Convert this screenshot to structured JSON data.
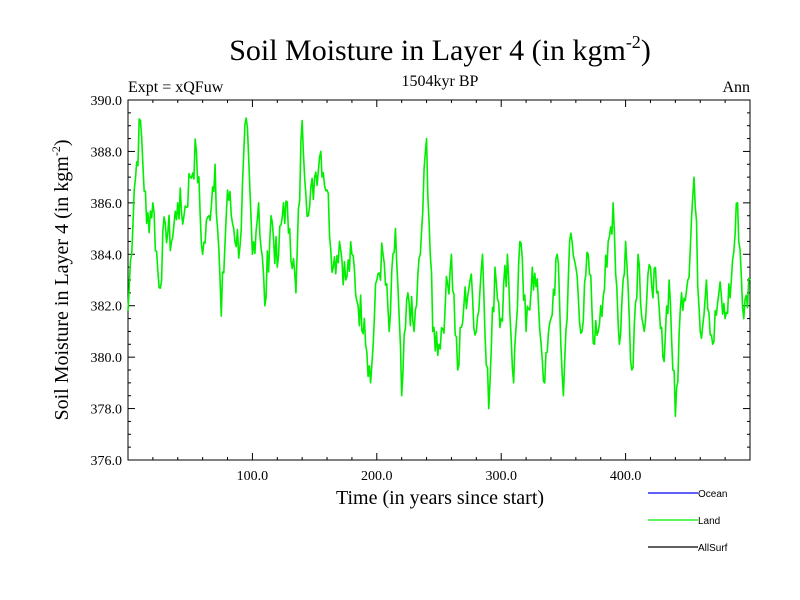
{
  "chart_data": {
    "type": "line",
    "title": "Soil Moisture in Layer 4 (in kgm",
    "title_sup": "-2",
    "title_suffix": ")",
    "subtitle_left": "Expt = xQFuw",
    "subtitle_center": "1504kyr BP",
    "subtitle_right": "Ann",
    "xlabel": "Time (in years since start)",
    "ylabel": "Soil Moisture in Layer 4 (in kgm",
    "ylabel_sup": "-2",
    "ylabel_suffix": ")",
    "xlim": [
      0,
      500
    ],
    "ylim": [
      376,
      390
    ],
    "xticks": [
      100,
      200,
      300,
      400
    ],
    "xtick_labels": [
      "100.0",
      "200.0",
      "300.0",
      "400.0"
    ],
    "yticks": [
      376,
      378,
      380,
      382,
      384,
      386,
      388,
      390
    ],
    "ytick_labels": [
      "376.0",
      "378.0",
      "380.0",
      "382.0",
      "384.0",
      "386.0",
      "388.0",
      "390.0"
    ],
    "legend": [
      {
        "name": "Ocean",
        "color": "#0000ff"
      },
      {
        "name": "Land",
        "color": "#00ee00"
      },
      {
        "name": "AllSurf",
        "color": "#000000"
      }
    ],
    "series": [
      {
        "name": "Land",
        "color": "#00ee00",
        "x": [
          0,
          5,
          10,
          15,
          20,
          25,
          30,
          35,
          40,
          45,
          50,
          55,
          60,
          65,
          70,
          75,
          80,
          85,
          90,
          95,
          100,
          105,
          110,
          115,
          120,
          125,
          130,
          135,
          140,
          145,
          150,
          155,
          160,
          165,
          170,
          175,
          180,
          185,
          190,
          195,
          200,
          205,
          210,
          215,
          220,
          225,
          230,
          235,
          240,
          245,
          250,
          255,
          260,
          265,
          270,
          275,
          280,
          285,
          290,
          295,
          300,
          305,
          310,
          315,
          320,
          325,
          330,
          335,
          340,
          345,
          350,
          355,
          360,
          365,
          370,
          375,
          380,
          385,
          390,
          395,
          400,
          405,
          410,
          415,
          420,
          425,
          430,
          435,
          440,
          445,
          450,
          455,
          460,
          465,
          470,
          475,
          480,
          485,
          490,
          495,
          500
        ],
        "values": [
          381.8,
          386.5,
          389.2,
          385.2,
          386.0,
          382.7,
          385.2,
          384.5,
          386.0,
          385.5,
          387.0,
          388.0,
          384.0,
          385.5,
          387.5,
          381.6,
          386.5,
          385.0,
          384.3,
          389.3,
          384.0,
          386.0,
          382.0,
          385.5,
          383.5,
          386.0,
          385.0,
          382.5,
          389.2,
          385.5,
          387.0,
          388.0,
          386.5,
          383.5,
          384.5,
          383.0,
          384.0,
          382.0,
          381.5,
          379.0,
          383.0,
          384.0,
          381.0,
          385.0,
          378.5,
          382.5,
          381.0,
          384.0,
          388.5,
          381.0,
          380.5,
          382.0,
          384.0,
          379.5,
          382.0,
          383.0,
          381.0,
          384.0,
          378.0,
          383.5,
          381.5,
          384.0,
          379.0,
          384.5,
          381.0,
          383.5,
          382.0,
          379.0,
          381.5,
          384.0,
          378.5,
          384.5,
          383.5,
          381.0,
          384.0,
          380.5,
          382.0,
          383.5,
          386.0,
          380.5,
          384.5,
          379.5,
          384.0,
          381.0,
          383.5,
          382.5,
          380.0,
          383.0,
          377.7,
          382.5,
          383.0,
          387.0,
          381.0,
          383.0,
          380.5,
          382.5,
          381.5,
          383.0,
          386.0,
          381.5,
          383.0
        ]
      }
    ]
  }
}
